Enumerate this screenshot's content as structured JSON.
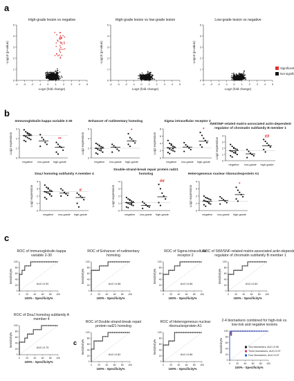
{
  "panels": {
    "a": "a",
    "b": "b",
    "c": "c",
    "c_inner": "c"
  },
  "chart_data": [
    {
      "type": "scatter",
      "id": "volcano-1",
      "title": "High-grade lesion vs negative",
      "xlabel": "Log2 (fold change)",
      "ylabel": "-Log10 (p-value)",
      "xlim": [
        -4,
        5
      ],
      "ylim": [
        0,
        5
      ],
      "xticks": [
        -4,
        -3,
        -2,
        -1,
        0,
        1,
        2,
        3,
        4,
        5
      ],
      "yticks": [
        0,
        1,
        2,
        3,
        4,
        5
      ],
      "series": [
        {
          "name": "Not significant",
          "color": "#111111"
        },
        {
          "name": "Significant",
          "color": "#e03131"
        }
      ]
    },
    {
      "type": "scatter",
      "id": "volcano-2",
      "title": "High-grade lesion vs low-grade lesion",
      "xlabel": "Log2 (fold change)",
      "ylabel": "-Log10 (p-value)",
      "xlim": [
        -4,
        5
      ],
      "ylim": [
        0,
        5
      ],
      "xticks": [
        -4,
        -3,
        -2,
        -1,
        0,
        1,
        2,
        3,
        4,
        5
      ],
      "yticks": [
        0,
        1,
        2,
        3,
        4,
        5
      ]
    },
    {
      "type": "scatter",
      "id": "volcano-3",
      "title": "Low-grade lesion vs negative",
      "xlabel": "Log2 (fold change)",
      "ylabel": "-Log10 (p-value)",
      "xlim": [
        -4,
        5
      ],
      "ylim": [
        0,
        5
      ],
      "xticks": [
        -4,
        -3,
        -2,
        -1,
        0,
        1,
        2,
        3,
        4,
        5
      ],
      "yticks": [
        0,
        1,
        2,
        3,
        4,
        5
      ]
    },
    {
      "type": "scatter",
      "id": "dot-1",
      "title": "Immunoglobulin kappa variable 2-30",
      "ylabel": "Log2 expression",
      "categories": [
        "negative",
        "low-grade",
        "high-grade"
      ],
      "ylim": [
        0,
        3
      ],
      "yticks": [
        0,
        1,
        2,
        3
      ],
      "means": [
        2.3,
        1.75,
        1.1
      ],
      "sig": "**",
      "points": [
        [
          2.9,
          2.7,
          2.6,
          2.5,
          2.4,
          2.3,
          2.2,
          2.1,
          2.0,
          1.9,
          1.8,
          1.7,
          2.5,
          2.35
        ],
        [
          2.4,
          2.1,
          1.9,
          1.6,
          1.4,
          1.2
        ],
        [
          1.6,
          1.4,
          1.2,
          1.1,
          0.8,
          0.6,
          0.4
        ]
      ]
    },
    {
      "type": "scatter",
      "id": "dot-2",
      "title": "Enhancer of rudimentary homolog",
      "ylabel": "Log2 expression",
      "categories": [
        "negative",
        "low-grade",
        "high-grade"
      ],
      "ylim": [
        0,
        6
      ],
      "yticks": [
        0,
        2,
        4,
        6
      ],
      "means": [
        2.0,
        2.2,
        3.5
      ],
      "sig": "*",
      "points": [
        [
          3.0,
          2.8,
          2.5,
          2.3,
          2.2,
          2.0,
          1.8,
          1.6,
          1.5,
          1.2,
          1.0,
          0.8,
          2.6,
          1.9
        ],
        [
          2.8,
          2.5,
          2.2,
          1.8,
          1.5,
          1.2
        ],
        [
          5.0,
          4.2,
          3.9,
          3.5,
          3.1,
          2.8,
          2.4
        ]
      ]
    },
    {
      "type": "scatter",
      "id": "dot-3",
      "title": "Sigma intracellular receptor 2",
      "ylabel": "Log2 expression",
      "categories": [
        "negative",
        "low-grade",
        "high-grade"
      ],
      "ylim": [
        0,
        8
      ],
      "yticks": [
        0,
        2,
        4,
        6,
        8
      ],
      "means": [
        2.8,
        3.0,
        4.6
      ],
      "sig": "*",
      "points": [
        [
          4.8,
          4.0,
          3.5,
          3.2,
          3.0,
          2.8,
          2.5,
          2.2,
          2.0,
          1.8,
          1.5,
          1.2,
          3.8,
          2.6
        ],
        [
          4.2,
          3.6,
          3.2,
          2.7,
          2.3,
          1.8
        ],
        [
          7.0,
          6.2,
          5.4,
          4.8,
          4.2,
          3.6,
          3.0
        ]
      ]
    },
    {
      "type": "scatter",
      "id": "dot-4",
      "title": "SWI/SNF-related matrix-associated actin-dependent regulator of chromatin subfamily B member 1",
      "ylabel": "Log2 expression",
      "categories": [
        "negative",
        "low-grade",
        "high-grade"
      ],
      "ylim": [
        0,
        4
      ],
      "yticks": [
        0,
        1,
        2,
        3,
        4
      ],
      "means": [
        1.6,
        1.1,
        2.4
      ],
      "sig": "##",
      "points": [
        [
          2.6,
          2.3,
          2.1,
          1.9,
          1.8,
          1.6,
          1.5,
          1.3,
          1.2,
          1.0,
          0.8,
          0.6,
          2.0,
          1.4
        ],
        [
          1.8,
          1.5,
          1.2,
          1.0,
          0.8,
          0.5
        ],
        [
          3.4,
          3.1,
          2.8,
          2.5,
          2.2,
          1.8,
          1.4
        ]
      ]
    },
    {
      "type": "scatter",
      "id": "dot-5",
      "title": "DnaJ homolog subfamily A member 4",
      "ylabel": "Log2 expression",
      "categories": [
        "negative",
        "low-grade",
        "high-grade"
      ],
      "ylim": [
        0,
        4
      ],
      "yticks": [
        0,
        1,
        2,
        3,
        4
      ],
      "means": [
        2.6,
        2.4,
        1.8
      ],
      "sig": "#",
      "points": [
        [
          3.5,
          3.2,
          3.0,
          2.8,
          2.7,
          2.6,
          2.5,
          2.4,
          2.2,
          2.0,
          1.8,
          1.6,
          3.1,
          2.3
        ],
        [
          3.0,
          2.8,
          2.5,
          2.3,
          2.1,
          2.0
        ],
        [
          2.4,
          2.2,
          2.0,
          1.8,
          1.5,
          1.0,
          0.5
        ]
      ]
    },
    {
      "type": "scatter",
      "id": "dot-6",
      "title": "Double-strand-break repair protein rad21 homolog",
      "ylabel": "Log2 expression",
      "categories": [
        "negative",
        "low-grade",
        "high-grade"
      ],
      "ylim": [
        0,
        4
      ],
      "yticks": [
        0,
        1,
        2,
        3,
        4
      ],
      "means": [
        1.1,
        0.7,
        1.9
      ],
      "sig": "##",
      "points": [
        [
          1.8,
          1.6,
          1.4,
          1.3,
          1.2,
          1.1,
          1.0,
          0.9,
          0.8,
          0.7,
          0.5,
          0.4,
          1.5,
          1.0
        ],
        [
          1.2,
          1.0,
          0.8,
          0.6,
          0.5,
          0.3
        ],
        [
          3.6,
          3.0,
          2.4,
          2.0,
          1.6,
          1.1,
          0.7
        ]
      ]
    },
    {
      "type": "scatter",
      "id": "dot-7",
      "title": "Heterogeneous nuclear ribonucleoprotein A1",
      "ylabel": "Log2 expression",
      "categories": [
        "negative",
        "low-grade",
        "high-grade"
      ],
      "ylim": [
        0,
        4
      ],
      "yticks": [
        0,
        1,
        2,
        3,
        4
      ],
      "means": [
        1.3,
        1.4,
        2.2
      ],
      "sig": "*",
      "points": [
        [
          2.0,
          1.8,
          1.7,
          1.6,
          1.5,
          1.4,
          1.3,
          1.2,
          1.0,
          0.9,
          0.8,
          0.6,
          1.7,
          1.1
        ],
        [
          1.9,
          1.7,
          1.5,
          1.3,
          1.1,
          0.9
        ],
        [
          3.2,
          2.8,
          2.5,
          2.2,
          1.9,
          1.6,
          1.3
        ]
      ]
    },
    {
      "type": "line",
      "id": "roc-1",
      "title": "ROC of Immunoglobulin kappa variable 2-30",
      "xlabel": "100% - Specificity%",
      "ylabel": "Sensitivity%",
      "xlim": [
        0,
        100
      ],
      "ylim": [
        0,
        100
      ],
      "xticks": [
        0,
        20,
        40,
        60,
        80,
        100
      ],
      "yticks": [
        0,
        20,
        40,
        60,
        80,
        100
      ],
      "auc": "AUC=0.90",
      "curve": [
        [
          0,
          0
        ],
        [
          0,
          57
        ],
        [
          7,
          57
        ],
        [
          7,
          71
        ],
        [
          14,
          71
        ],
        [
          14,
          86
        ],
        [
          29,
          86
        ],
        [
          29,
          100
        ],
        [
          100,
          100
        ]
      ]
    },
    {
      "type": "line",
      "id": "roc-2",
      "title": "ROC of Enhancer of rudimentary homolog",
      "xlabel": "100% - Specificity%",
      "ylabel": "Sensitivity%",
      "xlim": [
        0,
        100
      ],
      "ylim": [
        0,
        100
      ],
      "xticks": [
        0,
        20,
        40,
        60,
        80,
        100
      ],
      "yticks": [
        0,
        20,
        40,
        60,
        80,
        100
      ],
      "auc": "AUC=0.88",
      "curve": [
        [
          0,
          0
        ],
        [
          0,
          71
        ],
        [
          21,
          71
        ],
        [
          21,
          86
        ],
        [
          43,
          86
        ],
        [
          43,
          100
        ],
        [
          100,
          100
        ]
      ]
    },
    {
      "type": "line",
      "id": "roc-3",
      "title": "ROC of Sigma intracellular receptor 2",
      "xlabel": "100% - Specificity%",
      "ylabel": "Sensitivity%",
      "xlim": [
        0,
        100
      ],
      "ylim": [
        0,
        100
      ],
      "xticks": [
        0,
        20,
        40,
        60,
        80,
        100
      ],
      "yticks": [
        0,
        20,
        40,
        60,
        80,
        100
      ],
      "auc": "AUC=0.86",
      "curve": [
        [
          0,
          0
        ],
        [
          0,
          57
        ],
        [
          14,
          57
        ],
        [
          14,
          71
        ],
        [
          29,
          71
        ],
        [
          29,
          86
        ],
        [
          43,
          86
        ],
        [
          43,
          100
        ],
        [
          100,
          100
        ]
      ]
    },
    {
      "type": "line",
      "id": "roc-4",
      "title": "ROC of SWI/SNF-related matrix-associated actin-dependent regulator of chromatin subfamily B member 1",
      "xlabel": "100% - Specificity%",
      "ylabel": "Sensitivity%",
      "xlim": [
        0,
        100
      ],
      "ylim": [
        0,
        100
      ],
      "xticks": [
        0,
        20,
        40,
        60,
        80,
        100
      ],
      "yticks": [
        0,
        20,
        40,
        60,
        80,
        100
      ],
      "auc": "AUC=0.83",
      "curve": [
        [
          0,
          0
        ],
        [
          0,
          57
        ],
        [
          14,
          57
        ],
        [
          14,
          71
        ],
        [
          36,
          71
        ],
        [
          36,
          86
        ],
        [
          50,
          86
        ],
        [
          50,
          100
        ],
        [
          100,
          100
        ]
      ]
    },
    {
      "type": "line",
      "id": "roc-5",
      "title": "ROC of DnaJ homolog subfamily A member 4",
      "xlabel": "100% - Specificity%",
      "ylabel": "Sensitivity%",
      "xlim": [
        0,
        100
      ],
      "ylim": [
        0,
        100
      ],
      "xticks": [
        0,
        20,
        40,
        60,
        80,
        100
      ],
      "yticks": [
        0,
        20,
        40,
        60,
        80,
        100
      ],
      "auc": "AUC=0.75",
      "curve": [
        [
          0,
          0
        ],
        [
          0,
          43
        ],
        [
          14,
          43
        ],
        [
          14,
          57
        ],
        [
          21,
          57
        ],
        [
          21,
          71
        ],
        [
          36,
          71
        ],
        [
          36,
          86
        ],
        [
          57,
          86
        ],
        [
          57,
          100
        ],
        [
          100,
          100
        ]
      ]
    },
    {
      "type": "line",
      "id": "roc-6",
      "title": "ROC of Double-strand-break repair protein rad21 homolog",
      "xlabel": "100% - Specificity%",
      "ylabel": "Sensitivity%",
      "xlim": [
        0,
        100
      ],
      "ylim": [
        0,
        100
      ],
      "xticks": [
        0,
        20,
        40,
        60,
        80,
        100
      ],
      "yticks": [
        0,
        20,
        40,
        60,
        80,
        100
      ],
      "auc": "AUC=0.82",
      "curve": [
        [
          0,
          0
        ],
        [
          0,
          43
        ],
        [
          7,
          43
        ],
        [
          7,
          71
        ],
        [
          29,
          71
        ],
        [
          29,
          86
        ],
        [
          43,
          86
        ],
        [
          43,
          100
        ],
        [
          100,
          100
        ]
      ]
    },
    {
      "type": "line",
      "id": "roc-7",
      "title": "ROC of Heterogeneous nuclear ribonucleoprotein A1",
      "xlabel": "100% - Specificity%",
      "ylabel": "Sensitivity%",
      "xlim": [
        0,
        100
      ],
      "ylim": [
        0,
        100
      ],
      "xticks": [
        0,
        20,
        40,
        60,
        80,
        100
      ],
      "yticks": [
        0,
        20,
        40,
        60,
        80,
        100
      ],
      "auc": "AUC=0.86",
      "curve": [
        [
          0,
          0
        ],
        [
          0,
          57
        ],
        [
          14,
          57
        ],
        [
          14,
          71
        ],
        [
          29,
          71
        ],
        [
          29,
          100
        ],
        [
          100,
          100
        ]
      ]
    },
    {
      "type": "line",
      "id": "roc-combined",
      "title": "2-4 biomarkers combined for high-risk vs. low-risk and negative lesions",
      "xlabel": "100% - Specificity%",
      "ylabel": "Sensitivity%",
      "xlim": [
        0,
        100
      ],
      "ylim": [
        0,
        100
      ],
      "xticks": [
        0,
        20,
        40,
        60,
        80,
        100
      ],
      "yticks": [
        0,
        20,
        40,
        60,
        80,
        100
      ],
      "series": [
        {
          "name": "Two biomarkers, AUC=0.95",
          "color": "#1a1a1a",
          "curve": [
            [
              0,
              0
            ],
            [
              0,
              86
            ],
            [
              5,
              86
            ],
            [
              5,
              100
            ],
            [
              100,
              100
            ]
          ]
        },
        {
          "name": "Three biomarkers, AUC=0.97",
          "color": "#d6336c",
          "curve": [
            [
              0,
              0
            ],
            [
              0,
              90
            ],
            [
              3,
              90
            ],
            [
              3,
              100
            ],
            [
              100,
              100
            ]
          ]
        },
        {
          "name": "Four biomarkers, AUC=0.97",
          "color": "#1c5fd6",
          "curve": [
            [
              0,
              0
            ],
            [
              0,
              92
            ],
            [
              2,
              92
            ],
            [
              2,
              100
            ],
            [
              100,
              100
            ]
          ]
        }
      ]
    }
  ]
}
